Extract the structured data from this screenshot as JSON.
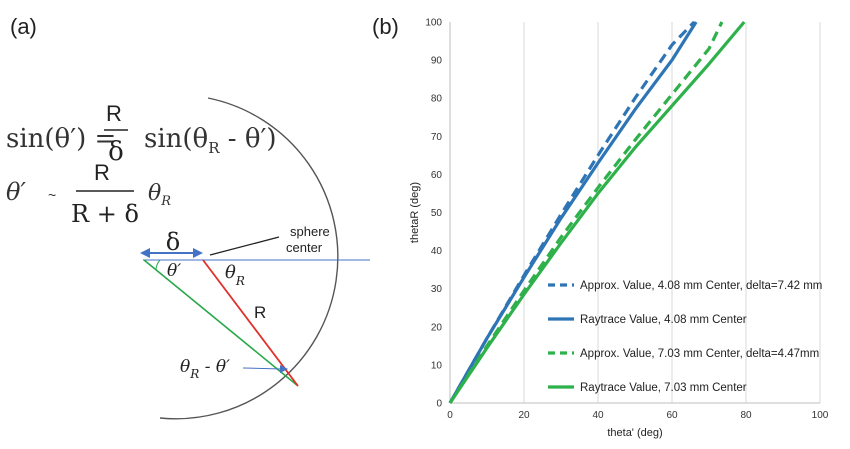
{
  "panel_a": {
    "label": "(a)",
    "eq1": {
      "lhs": "sin(θ′) =",
      "num": "R",
      "den": "δ",
      "rhs_prefix": "sin(θ",
      "rhs_sub": "R",
      "rhs_suffix": " - θ′)"
    },
    "eq2": {
      "lhs": "θ′",
      "approx": "~",
      "num": "R",
      "den": "R + δ",
      "rhs": "θ",
      "rhs_sub": "R"
    },
    "diagram": {
      "delta": "δ",
      "sphere_center": [
        "sphere",
        "center"
      ],
      "theta_prime": "θ′",
      "theta_r": "θ",
      "theta_r_sub": "R",
      "radius": "R",
      "diff_theta": "θ",
      "diff_sub": "R",
      "diff_rest": " -  θ′"
    },
    "colors": {
      "radius": "#e0302a",
      "ray": "#2aa84a",
      "axis": "#4472c4",
      "arc": "#555555"
    }
  },
  "panel_b": {
    "label": "(b)"
  },
  "chart_data": {
    "type": "line",
    "xlabel": "theta' (deg)",
    "ylabel": "thetaR (deg)",
    "xlim": [
      0,
      100
    ],
    "ylim": [
      0,
      100
    ],
    "xticks": [
      0,
      20,
      40,
      60,
      80,
      100
    ],
    "yticks": [
      0,
      10,
      20,
      30,
      40,
      50,
      60,
      70,
      80,
      90,
      100
    ],
    "grid": "vertical",
    "legend_position": "right-bottom",
    "series": [
      {
        "name": "Approx. Value, 4.08 mm Center, delta=7.42 mm",
        "color": "#2e75b6",
        "dash": true,
        "x": [
          0,
          10,
          20,
          30,
          40,
          50,
          60,
          66
        ],
        "y": [
          0,
          17,
          33.5,
          49.5,
          65,
          80,
          94,
          100
        ]
      },
      {
        "name": "Raytrace Value, 4.08 mm Center",
        "color": "#2e75b6",
        "dash": false,
        "x": [
          0,
          10,
          20,
          30,
          40,
          50,
          60,
          66.5
        ],
        "y": [
          0,
          17,
          33,
          48.5,
          63,
          77,
          90,
          100
        ]
      },
      {
        "name": "Approx. Value, 7.03 mm Center, delta=4.47mm",
        "color": "#2eb04a",
        "dash": true,
        "x": [
          0,
          10,
          20,
          30,
          40,
          50,
          60,
          70,
          73.5
        ],
        "y": [
          0,
          15,
          29.5,
          43.5,
          56.5,
          69,
          81,
          93,
          100
        ]
      },
      {
        "name": "Raytrace Value, 7.03 mm Center",
        "color": "#2eb04a",
        "dash": false,
        "x": [
          0,
          10,
          20,
          30,
          40,
          50,
          60,
          70,
          79.5
        ],
        "y": [
          0,
          14.5,
          28.5,
          42,
          55,
          67,
          78,
          89,
          100
        ]
      }
    ]
  }
}
